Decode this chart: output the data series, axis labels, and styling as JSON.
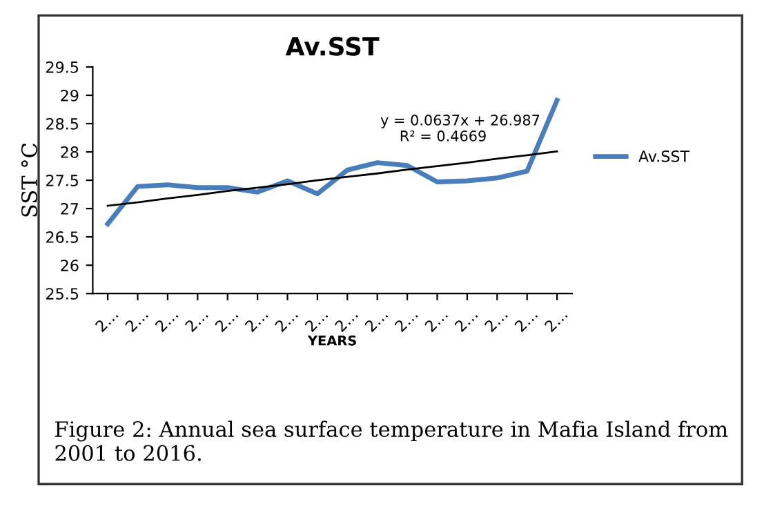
{
  "chart_data": {
    "type": "line",
    "title": "Av.SST",
    "xlabel": "YEARS",
    "ylabel": "SST °C",
    "categories": [
      "2…",
      "2…",
      "2…",
      "2…",
      "2…",
      "2…",
      "2…",
      "2…",
      "2…",
      "2…",
      "2…",
      "2…",
      "2…",
      "2…",
      "2…",
      "2…"
    ],
    "series": [
      {
        "name": "Av.SST",
        "color": "#4a7ebb",
        "values": [
          26.73,
          27.39,
          27.42,
          27.37,
          27.37,
          27.29,
          27.49,
          27.26,
          27.68,
          27.81,
          27.76,
          27.47,
          27.49,
          27.54,
          27.66,
          28.91
        ]
      },
      {
        "color": "#000000",
        "values": [
          27.05,
          27.11,
          27.18,
          27.24,
          27.31,
          27.37,
          27.43,
          27.5,
          27.56,
          27.62,
          27.69,
          27.75,
          27.81,
          27.88,
          27.94,
          28.01
        ]
      }
    ],
    "ylim": [
      25.5,
      29.5
    ],
    "yticks": [
      25.5,
      26,
      26.5,
      27,
      27.5,
      28,
      28.5,
      29,
      29.5
    ],
    "grid": false,
    "legend": "right",
    "marker": "none",
    "line_style": "solid",
    "annotations": [
      "y = 0.0637x + 26.987",
      "R² = 0.4669",
      "Figure 2: Annual sea surface temperature in Mafia Island from 2001 to 2016."
    ]
  }
}
